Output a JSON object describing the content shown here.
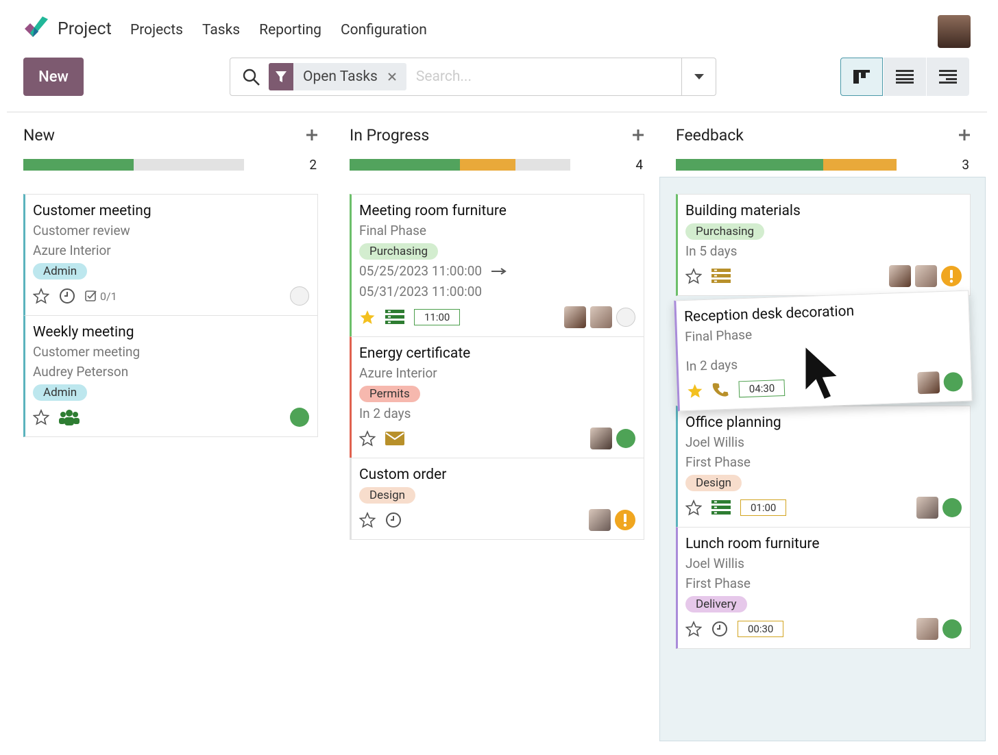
{
  "nav": {
    "app": "Project",
    "menu": [
      "Projects",
      "Tasks",
      "Reporting",
      "Configuration"
    ]
  },
  "toolbar": {
    "new_button": "New",
    "filter": "Open Tasks",
    "search_placeholder": "Search..."
  },
  "columns": [
    {
      "title": "New",
      "count": 2,
      "highlight": false,
      "progress": [
        {
          "color": "#52a35d",
          "count": 1
        }
      ],
      "cards": [
        {
          "title": "Customer meeting",
          "lines": [
            "Customer review",
            "Azure Interior"
          ],
          "tag": {
            "label": "Admin",
            "color": "#bde7ee"
          },
          "color": "#5bb3bd",
          "starred": false,
          "activity": "clock",
          "checklist": "0/1",
          "avatars": [],
          "status": "grey"
        },
        {
          "title": "Weekly meeting",
          "lines": [
            "Customer meeting",
            "Audrey Peterson"
          ],
          "tag": {
            "label": "Admin",
            "color": "#bde7ee"
          },
          "color": "#5bb3bd",
          "starred": false,
          "activity": "users",
          "avatars": [],
          "status": "green"
        }
      ]
    },
    {
      "title": "In Progress",
      "count": 4,
      "highlight": false,
      "progress": [
        {
          "color": "#52a35d",
          "count": 2
        },
        {
          "color": "#e9a93a",
          "count": 1
        }
      ],
      "cards": [
        {
          "title": "Meeting room furniture",
          "lines": [
            "Final Phase"
          ],
          "tag": {
            "label": "Purchasing",
            "color": "#d3edcf"
          },
          "dates": [
            "05/25/2023 11:00:00",
            "05/31/2023 11:00:00"
          ],
          "color": "#6cbf6a",
          "starred": true,
          "activity": "list-green",
          "time": {
            "label": "11:00",
            "color": "#4a9e4a"
          },
          "avatars": [
            "#5b3a2a",
            "#8a6f62"
          ],
          "status": "grey"
        },
        {
          "title": "Energy certificate",
          "lines": [
            "Azure Interior"
          ],
          "tag": {
            "label": "Permits",
            "color": "#f6b8ae"
          },
          "after": [
            "In 2 days"
          ],
          "color": "#e0614f",
          "starred": false,
          "activity": "mail",
          "avatars": [
            "#4b3a33"
          ],
          "status": "green"
        },
        {
          "title": "Custom order",
          "tag": {
            "label": "Design",
            "color": "#f7ddcc"
          },
          "color": "#e2e2e2",
          "starred": false,
          "activity": "clock",
          "avatars": [
            "#6a5a55"
          ],
          "status": "warning"
        }
      ]
    },
    {
      "title": "Feedback",
      "count": 3,
      "highlight": true,
      "progress": [
        {
          "color": "#52a35d",
          "count": 2
        },
        {
          "color": "#e9a93a",
          "count": 1
        }
      ],
      "cards": [
        {
          "title": "Building materials",
          "tag": {
            "label": "Purchasing",
            "color": "#d3edcf"
          },
          "after": [
            "In 5 days"
          ],
          "color": "#6cbf6a",
          "starred": false,
          "activity": "list-gold",
          "avatars": [
            "#5b3a2a",
            "#8a6f62"
          ],
          "status": "warning"
        },
        {
          "title": "Reception desk decoration",
          "lines": [
            "Final Phase"
          ],
          "after": [
            "In 2 days"
          ],
          "color": "#a98bd9",
          "starred": true,
          "activity": "phone",
          "time": {
            "label": "04:30",
            "color": "#4a9e4a"
          },
          "avatars": [
            "#5b3a2a"
          ],
          "status": "green",
          "dragging": true
        },
        {
          "title": "Office planning",
          "lines": [
            "Joel Willis",
            "First Phase"
          ],
          "tag": {
            "label": "Design",
            "color": "#f7ddcc"
          },
          "color": "#5bb3bd",
          "starred": false,
          "activity": "list-green",
          "time": {
            "label": "01:00",
            "color": "#d2a420"
          },
          "avatars": [
            "#6a5a55"
          ],
          "status": "green"
        },
        {
          "title": "Lunch room furniture",
          "lines": [
            "Joel Willis",
            "First Phase"
          ],
          "tag": {
            "label": "Delivery",
            "color": "#e6c8ea"
          },
          "color": "#a98bd9",
          "starred": false,
          "activity": "clock",
          "time": {
            "label": "00:30",
            "color": "#d2a420"
          },
          "avatars": [
            "#8a6f62"
          ],
          "status": "green"
        }
      ]
    }
  ]
}
